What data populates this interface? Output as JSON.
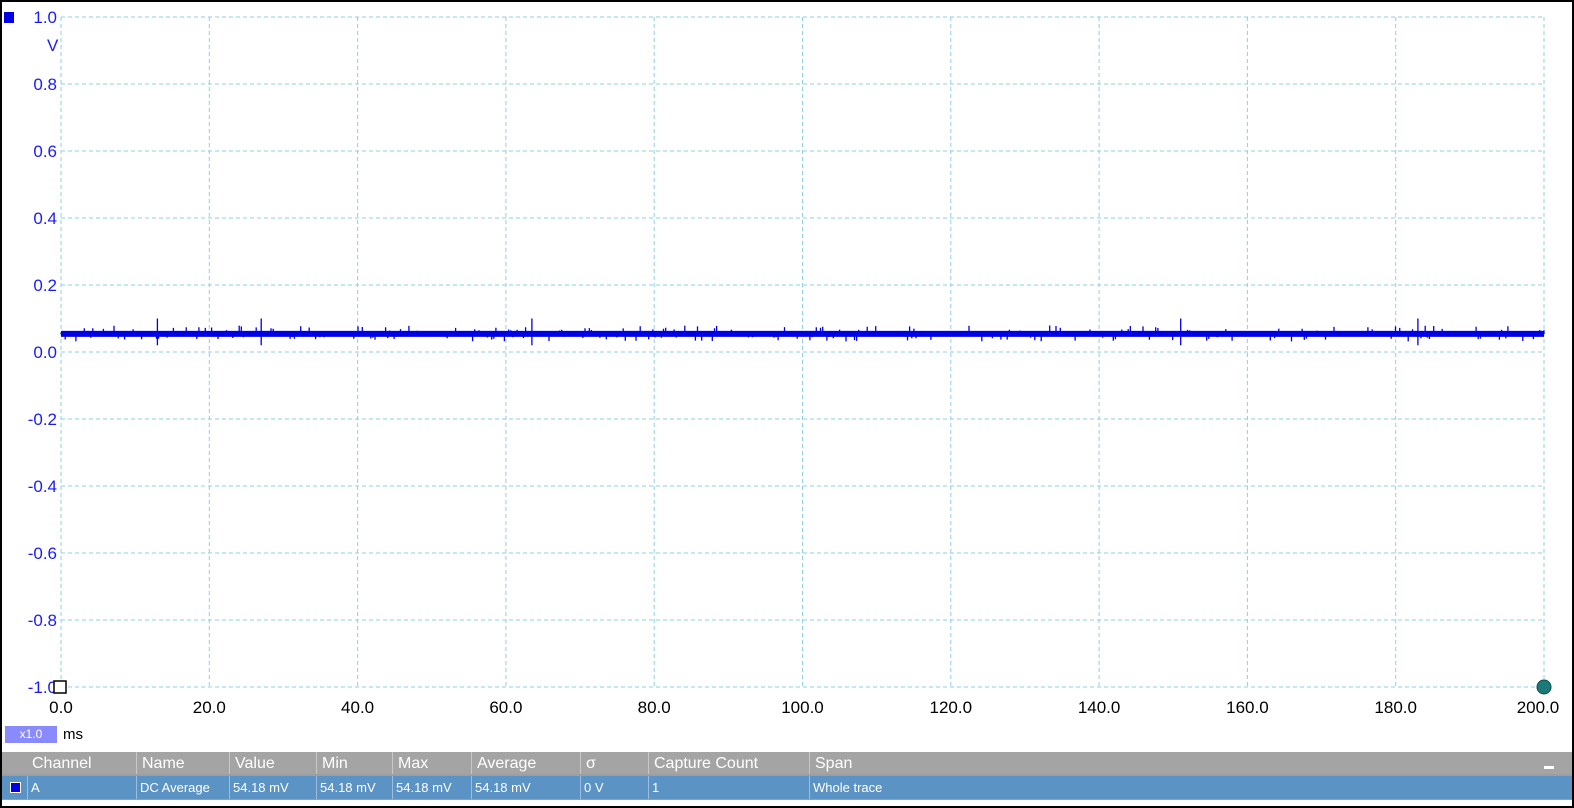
{
  "scope": {
    "y_unit": "V",
    "x_unit": "ms",
    "zoom_label": "x1.0",
    "colors": {
      "trace": "#0000e6",
      "grid": "#8fd0e6",
      "y_labels": "#1a1aff",
      "trigger_marker": "#1a7a7a"
    }
  },
  "chart_data": {
    "type": "line",
    "x_ticks": [
      "0.0",
      "20.0",
      "40.0",
      "60.0",
      "80.0",
      "100.0",
      "120.0",
      "140.0",
      "160.0",
      "180.0",
      "200.0"
    ],
    "y_ticks": [
      "1.0",
      "0.8",
      "0.6",
      "0.4",
      "0.2",
      "0.0",
      "-0.2",
      "-0.4",
      "-0.6",
      "-0.8",
      "-1.0"
    ],
    "xlim": [
      0,
      200
    ],
    "ylim": [
      -1.0,
      1.0
    ],
    "grid": true,
    "series": [
      {
        "channel": "A",
        "mean": 0.05418,
        "noise_band": [
          0.04,
          0.07
        ],
        "spike_max": 0.1,
        "spike_min": 0.02
      }
    ]
  },
  "measurements": {
    "columns": [
      "Channel",
      "Name",
      "Value",
      "Min",
      "Max",
      "Average",
      "σ",
      "Capture Count",
      "Span"
    ],
    "rows": [
      [
        "A",
        "DC Average",
        "54.18 mV",
        "54.18 mV",
        "54.18 mV",
        "54.18 mV",
        "0 V",
        "1",
        "Whole trace"
      ]
    ]
  }
}
